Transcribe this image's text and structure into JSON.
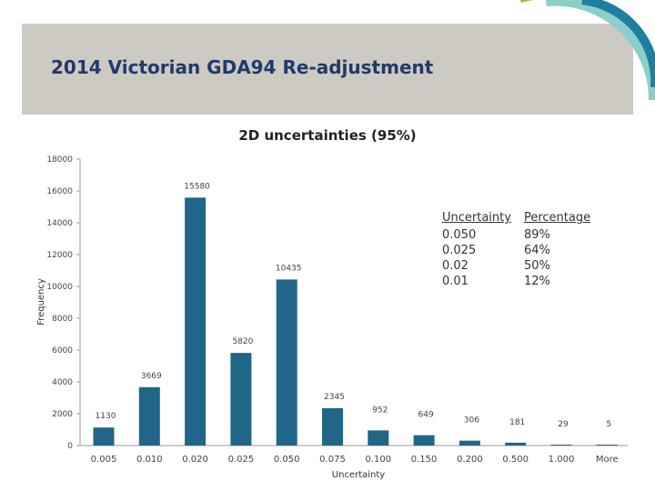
{
  "header": {
    "title": "2014 Victorian GDA94 Re-adjustment"
  },
  "colors": {
    "bar": "#1f6688",
    "header_band": "#cdc9c3",
    "title": "#203a6a",
    "deco_dark": "#1e7fa0",
    "deco_light": "#8ccfc9",
    "deco_green": "#8cc63f"
  },
  "chart_data": {
    "type": "bar",
    "title": "2D uncertainties (95%)",
    "xlabel": "Uncertainty",
    "ylabel": "Frequency",
    "ylim": [
      0,
      18000
    ],
    "yticks": [
      0,
      2000,
      4000,
      6000,
      8000,
      10000,
      12000,
      14000,
      16000,
      18000
    ],
    "grid": false,
    "categories": [
      "0.005",
      "0.010",
      "0.020",
      "0.025",
      "0.050",
      "0.075",
      "0.100",
      "0.150",
      "0.200",
      "0.500",
      "1.000",
      "More"
    ],
    "values": [
      1130,
      3669,
      15580,
      5820,
      10435,
      2345,
      952,
      649,
      306,
      181,
      29,
      5
    ],
    "data_labels": [
      "1130",
      "3669",
      "15580",
      "5820",
      "10435",
      "2345",
      "952",
      "649",
      "306",
      "181",
      "29",
      "5"
    ]
  },
  "legend_table": {
    "headers": [
      "Uncertainty",
      "Percentage"
    ],
    "rows": [
      [
        "0.050",
        "89%"
      ],
      [
        "0.025",
        "64%"
      ],
      [
        "0.02",
        "50%"
      ],
      [
        "0.01",
        "12%"
      ]
    ]
  }
}
